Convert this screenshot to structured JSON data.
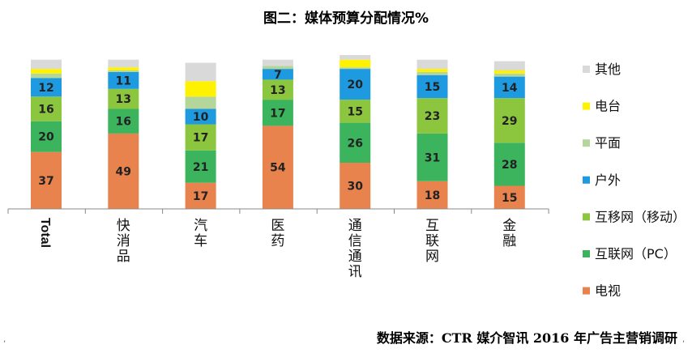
{
  "chart_data": {
    "type": "bar",
    "stacked": true,
    "title": "图二：媒体预算分配情况%",
    "categories": [
      "Total",
      "快消品",
      "汽车",
      "医药",
      "通信通讯",
      "互联网",
      "金融"
    ],
    "series": [
      {
        "name": "电视",
        "color": "#E9834E",
        "values": [
          37,
          49,
          17,
          54,
          30,
          18,
          15
        ]
      },
      {
        "name": "互联网（PC）",
        "color": "#3CB45E",
        "values": [
          20,
          16,
          21,
          17,
          26,
          31,
          28
        ]
      },
      {
        "name": "互移网（移动）",
        "color": "#8CC63F",
        "values": [
          16,
          13,
          17,
          13,
          15,
          23,
          29
        ]
      },
      {
        "name": "户外",
        "color": "#1E9BE0",
        "values": [
          12,
          11,
          10,
          7,
          20,
          15,
          14
        ]
      },
      {
        "name": "平面",
        "color": "#B5D69A",
        "values": [
          3,
          1,
          8,
          2,
          1,
          2,
          2
        ]
      },
      {
        "name": "电台",
        "color": "#FFF200",
        "values": [
          3,
          2,
          10,
          0,
          5,
          2,
          2
        ]
      },
      {
        "name": "其他",
        "color": "#D9D9D9",
        "values": [
          6,
          5,
          12,
          4,
          3,
          6,
          6
        ]
      }
    ],
    "labeled_series": [
      0,
      1,
      2,
      3
    ],
    "legend_order": [
      "其他",
      "电台",
      "平面",
      "户外",
      "互移网（移动）",
      "互联网（PC）",
      "电视"
    ],
    "legend_position": "right",
    "ylim": [
      0,
      100
    ],
    "grid": false
  },
  "source_text": "数据来源：CTR 媒介智讯 2016 年广告主营销调研"
}
